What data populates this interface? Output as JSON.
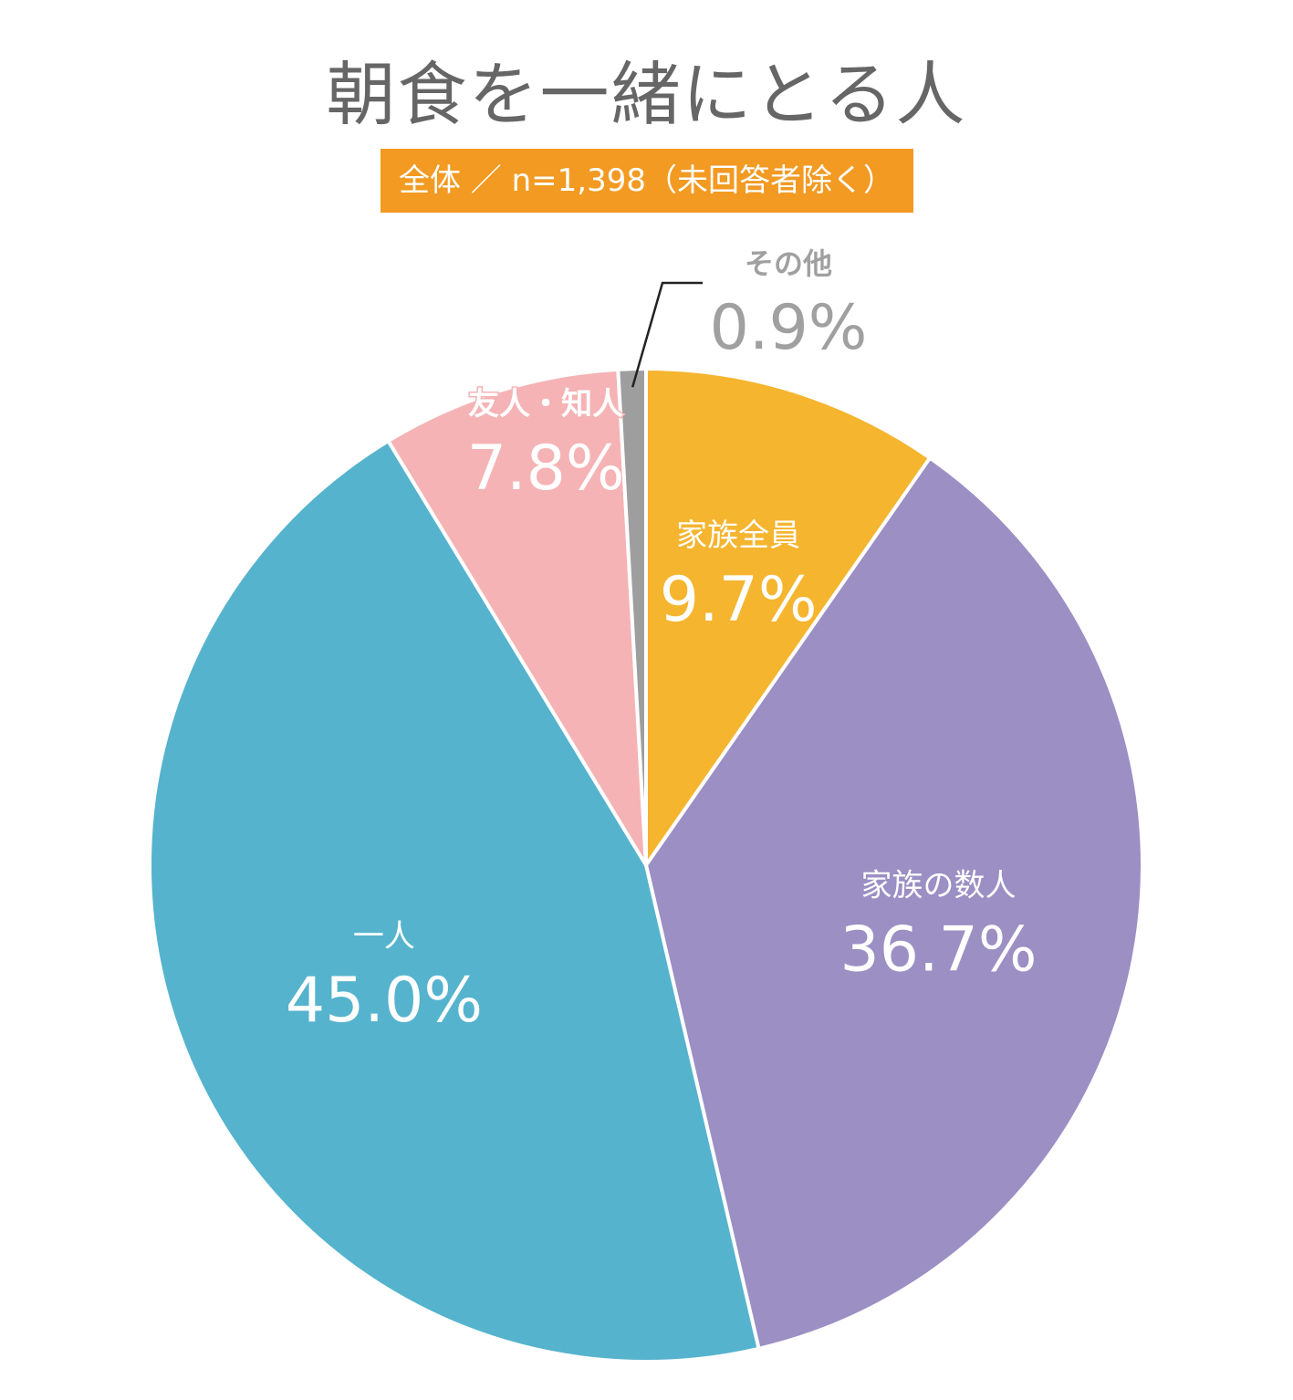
{
  "title": "朝食を一緒にとる人",
  "subtitle": "全体 ／ n=1,398（未回答者除く）",
  "chart_data": {
    "type": "pie",
    "start": "top",
    "direction": "clockwise",
    "slices": [
      {
        "label": "家族全員",
        "value": 9.7,
        "value_label": "9.7%",
        "color": "#f5b52f",
        "label_color": "#ffffff"
      },
      {
        "label": "家族の数人",
        "value": 36.7,
        "value_label": "36.7%",
        "color": "#9b8fc4",
        "label_color": "#ffffff"
      },
      {
        "label": "一人",
        "value": 45.0,
        "value_label": "45.0%",
        "color": "#55b3cd",
        "label_color": "#ffffff"
      },
      {
        "label": "友人・知人",
        "value": 7.8,
        "value_label": "7.8%",
        "color": "#f5b3b5",
        "label_color": "#ffffff"
      },
      {
        "label": "その他",
        "value": 0.9,
        "value_label": "0.9%",
        "color": "#9e9e9e",
        "label_color": "#a0a0a0"
      }
    ],
    "edge_color": "#ffffff"
  }
}
